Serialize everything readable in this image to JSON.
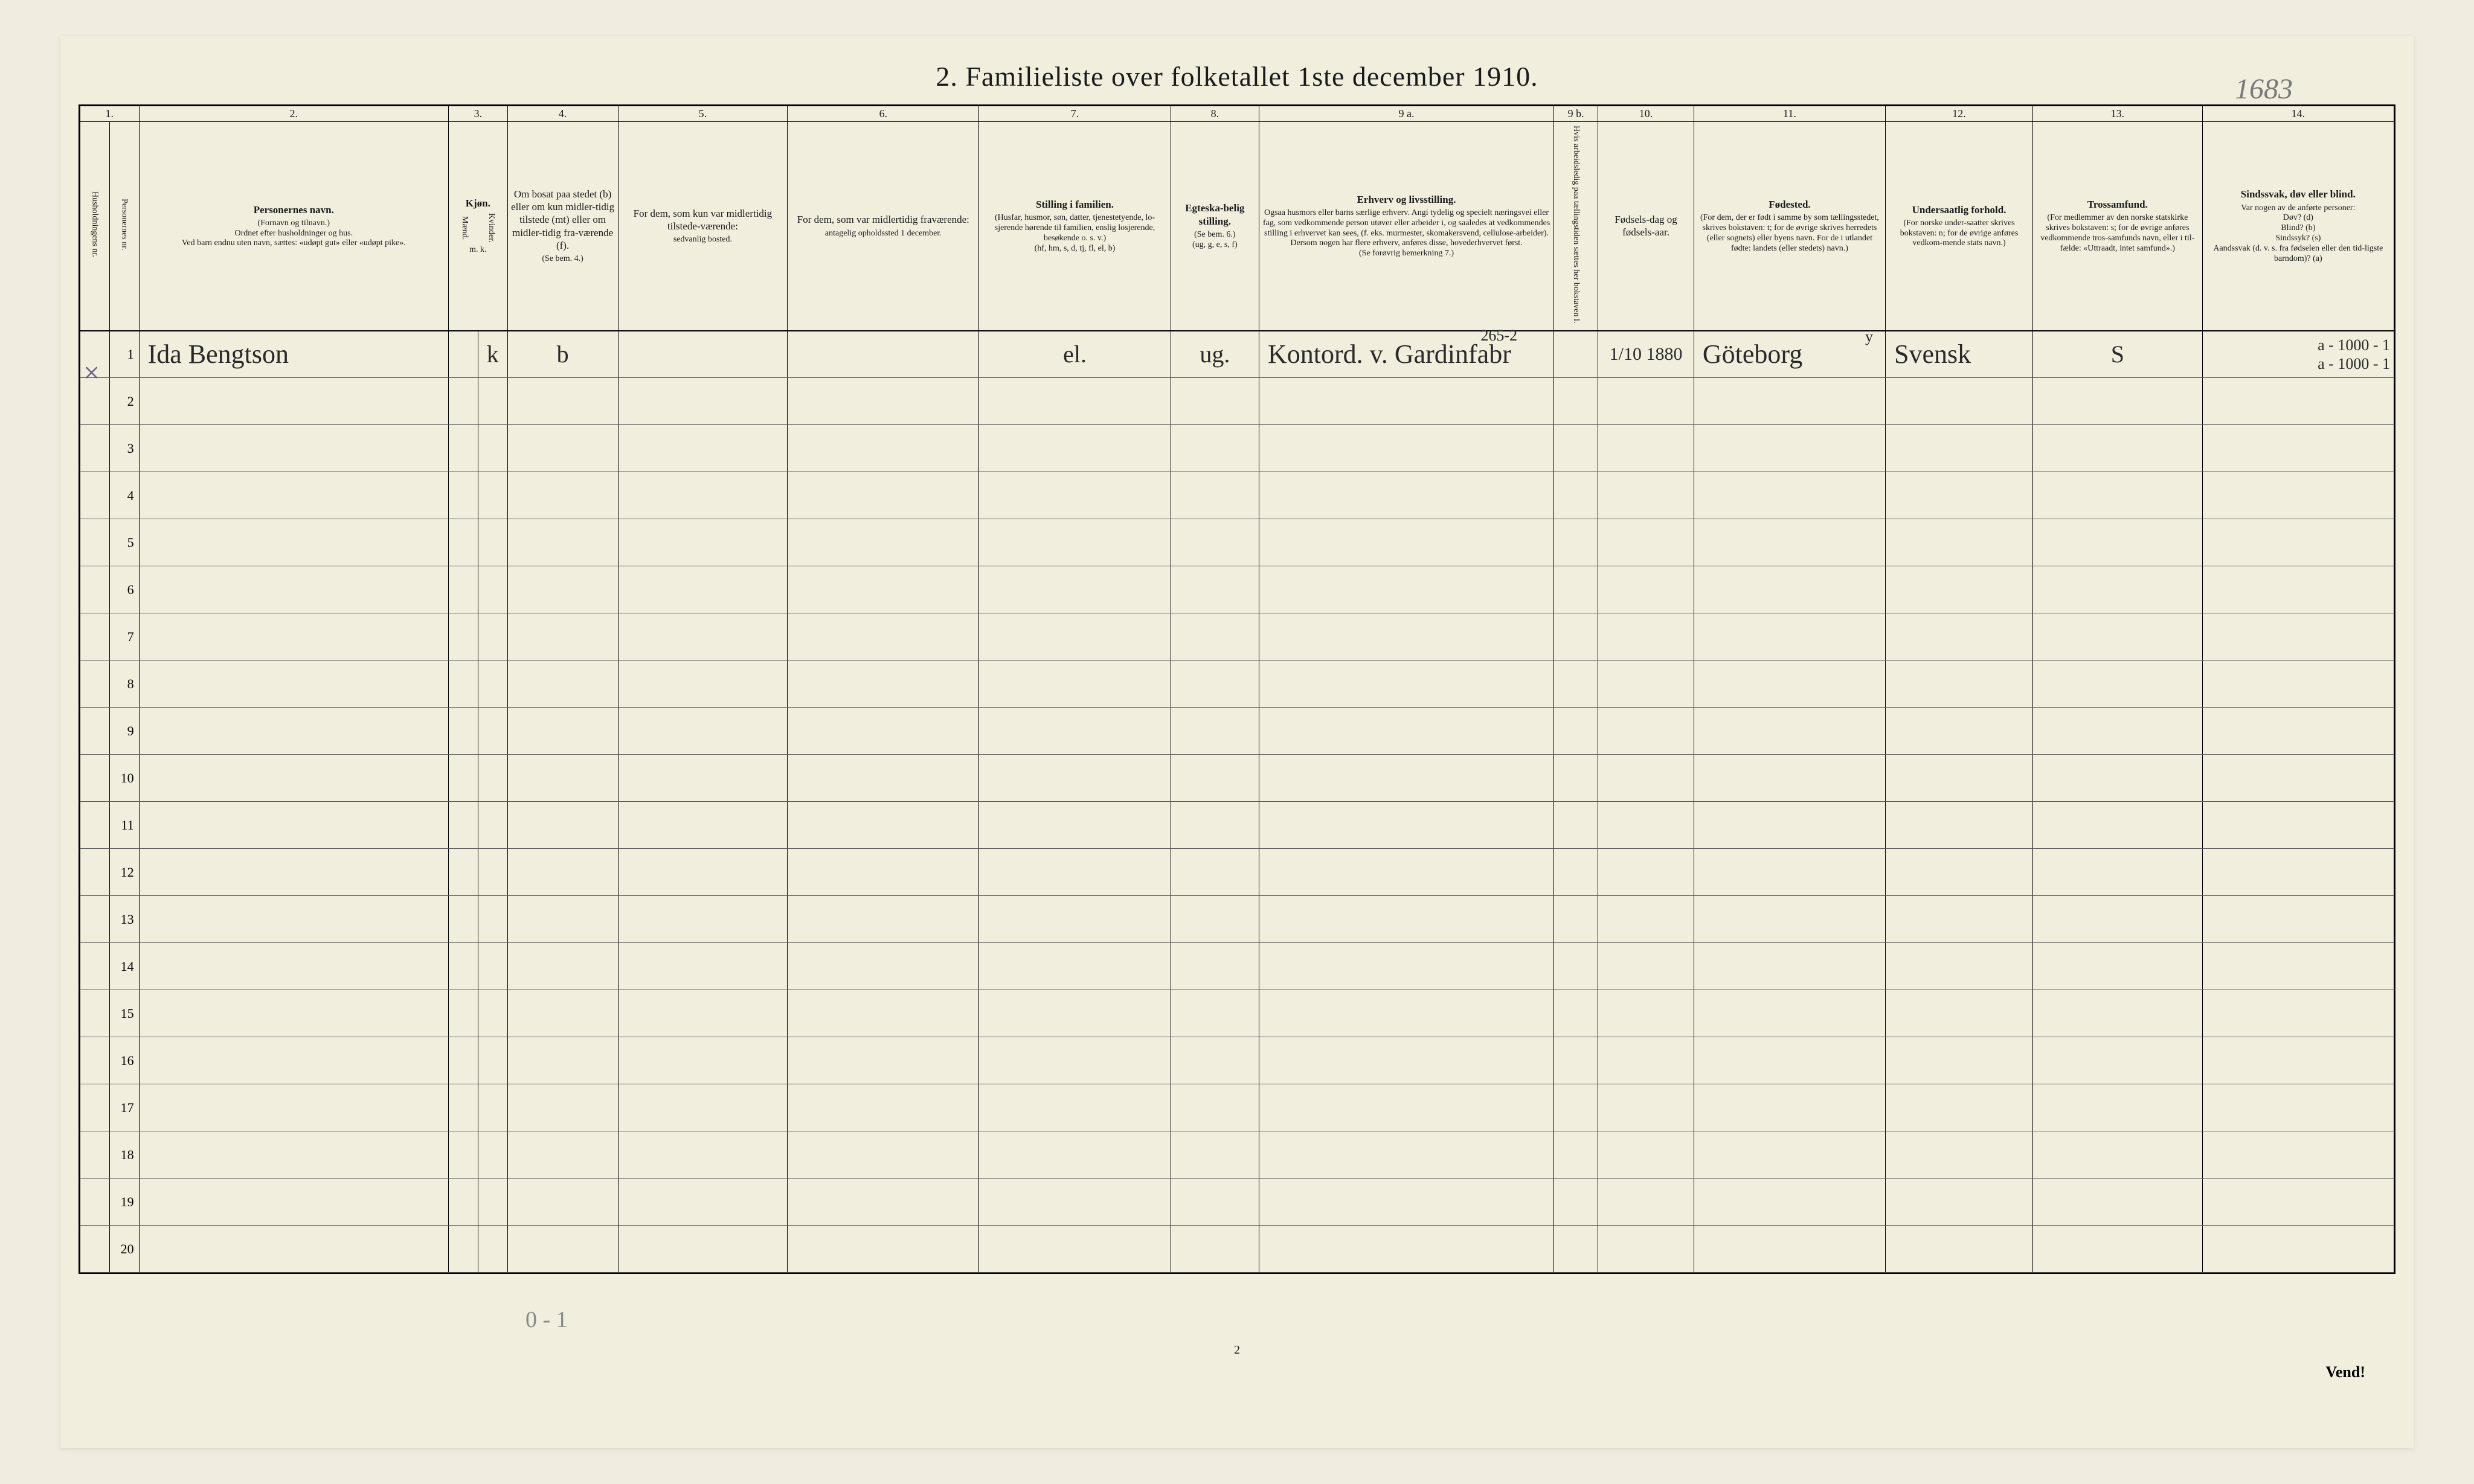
{
  "title": "2.  Familieliste over folketallet 1ste december 1910.",
  "annotation_topright": "1683",
  "column_numbers": [
    "1.",
    "",
    "2.",
    "3.",
    "4.",
    "5.",
    "6.",
    "7.",
    "8.",
    "9 a.",
    "9 b.",
    "10.",
    "11.",
    "12.",
    "13.",
    "14."
  ],
  "headers": {
    "c1": "Husholdningens nr.",
    "c1b": "Personernes nr.",
    "c2_title": "Personernes navn.",
    "c2_note": "(Fornavn og tilnavn.)\nOrdnet efter husholdninger og hus.\nVed barn endnu uten navn, sættes: «udøpt gut» eller «udøpt pike».",
    "c3_title": "Kjøn.",
    "c3_m": "Mænd.",
    "c3_k": "Kvinder.",
    "c3_sub": "m.  k.",
    "c4_title": "Om bosat paa stedet (b) eller om kun midler-tidig tilstede (mt) eller om midler-tidig fra-værende (f).",
    "c4_note": "(Se bem. 4.)",
    "c5_title": "For dem, som kun var midlertidig tilstede-værende:",
    "c5_note": "sedvanlig bosted.",
    "c6_title": "For dem, som var midlertidig fraværende:",
    "c6_note": "antagelig opholdssted 1 december.",
    "c7_title": "Stilling i familien.",
    "c7_note": "(Husfar, husmor, søn, datter, tjenestetyende, lo-sjerende hørende til familien, enslig losjerende, besøkende o. s. v.)\n(hf, hm, s, d, tj, fl, el, b)",
    "c8_title": "Egteska-belig stilling.",
    "c8_note": "(Se bem. 6.)\n(ug, g, e, s, f)",
    "c9a_title": "Erhverv og livsstilling.",
    "c9a_note": "Ogsaa husmors eller barns særlige erhverv. Angi tydelig og specielt næringsvei eller fag, som vedkommende person utøver eller arbeider i, og saaledes at vedkommendes stilling i erhvervet kan sees, (f. eks. murmester, skomakersvend, cellulose-arbeider). Dersom nogen har flere erhverv, anføres disse, hovederhvervet først.\n(Se forøvrig bemerkning 7.)",
    "c9b_title": "Hvis arbeidsledig paa tællingstiden sættes her bokstaven l.",
    "c10_title": "Fødsels-dag og fødsels-aar.",
    "c11_title": "Fødested.",
    "c11_note": "(For dem, der er født i samme by som tællingsstedet, skrives bokstaven: t; for de øvrige skrives herredets (eller sognets) eller byens navn. For de i utlandet fødte: landets (eller stedets) navn.)",
    "c12_title": "Undersaatlig forhold.",
    "c12_note": "(For norske under-saatter skrives bokstaven: n; for de øvrige anføres vedkom-mende stats navn.)",
    "c13_title": "Trossamfund.",
    "c13_note": "(For medlemmer av den norske statskirke skrives bokstaven: s; for de øvrige anføres vedkommende tros-samfunds navn, eller i til-fælde: «Uttraadt, intet samfund».)",
    "c14_title": "Sindssvak, døv eller blind.",
    "c14_note": "Var nogen av de anførte personer:\nDøv?        (d)\nBlind?      (b)\nSindssyk?  (s)\nAandssvak (d. v. s. fra fødselen eller den tid-ligste barndom)? (a)"
  },
  "row1": {
    "num": "1",
    "name": "Ida  Bengtson",
    "kj": "k",
    "bosat": "b",
    "c7": "el.",
    "c8": "ug.",
    "c9a": "Kontord. v. Gardinfabr",
    "c9a_above": "265-2",
    "c10": "1/10 1880",
    "c11": "Göteborg",
    "c11_above": "y",
    "c12": "Svensk",
    "c13": "S",
    "c14": "a - 1000 - 1\na - 1000 - 1"
  },
  "row_numbers": [
    "2",
    "3",
    "4",
    "5",
    "6",
    "7",
    "8",
    "9",
    "10",
    "11",
    "12",
    "13",
    "14",
    "15",
    "16",
    "17",
    "18",
    "19",
    "20"
  ],
  "bottom_pencil": "0 - 1",
  "page_number": "2",
  "vend": "Vend!",
  "widths": {
    "c1": 40,
    "c1b": 40,
    "c2": 420,
    "c3m": 40,
    "c3k": 40,
    "c4": 150,
    "c5": 230,
    "c6": 260,
    "c7": 260,
    "c8": 120,
    "c9a": 400,
    "c9b": 60,
    "c10": 130,
    "c11": 260,
    "c12": 200,
    "c13": 230,
    "c14": 260
  },
  "colors": {
    "paper": "#f2eedd",
    "ink": "#1a1a1a",
    "pencil": "#888888",
    "cursive": "#2a2a2a",
    "border": "#000000"
  }
}
